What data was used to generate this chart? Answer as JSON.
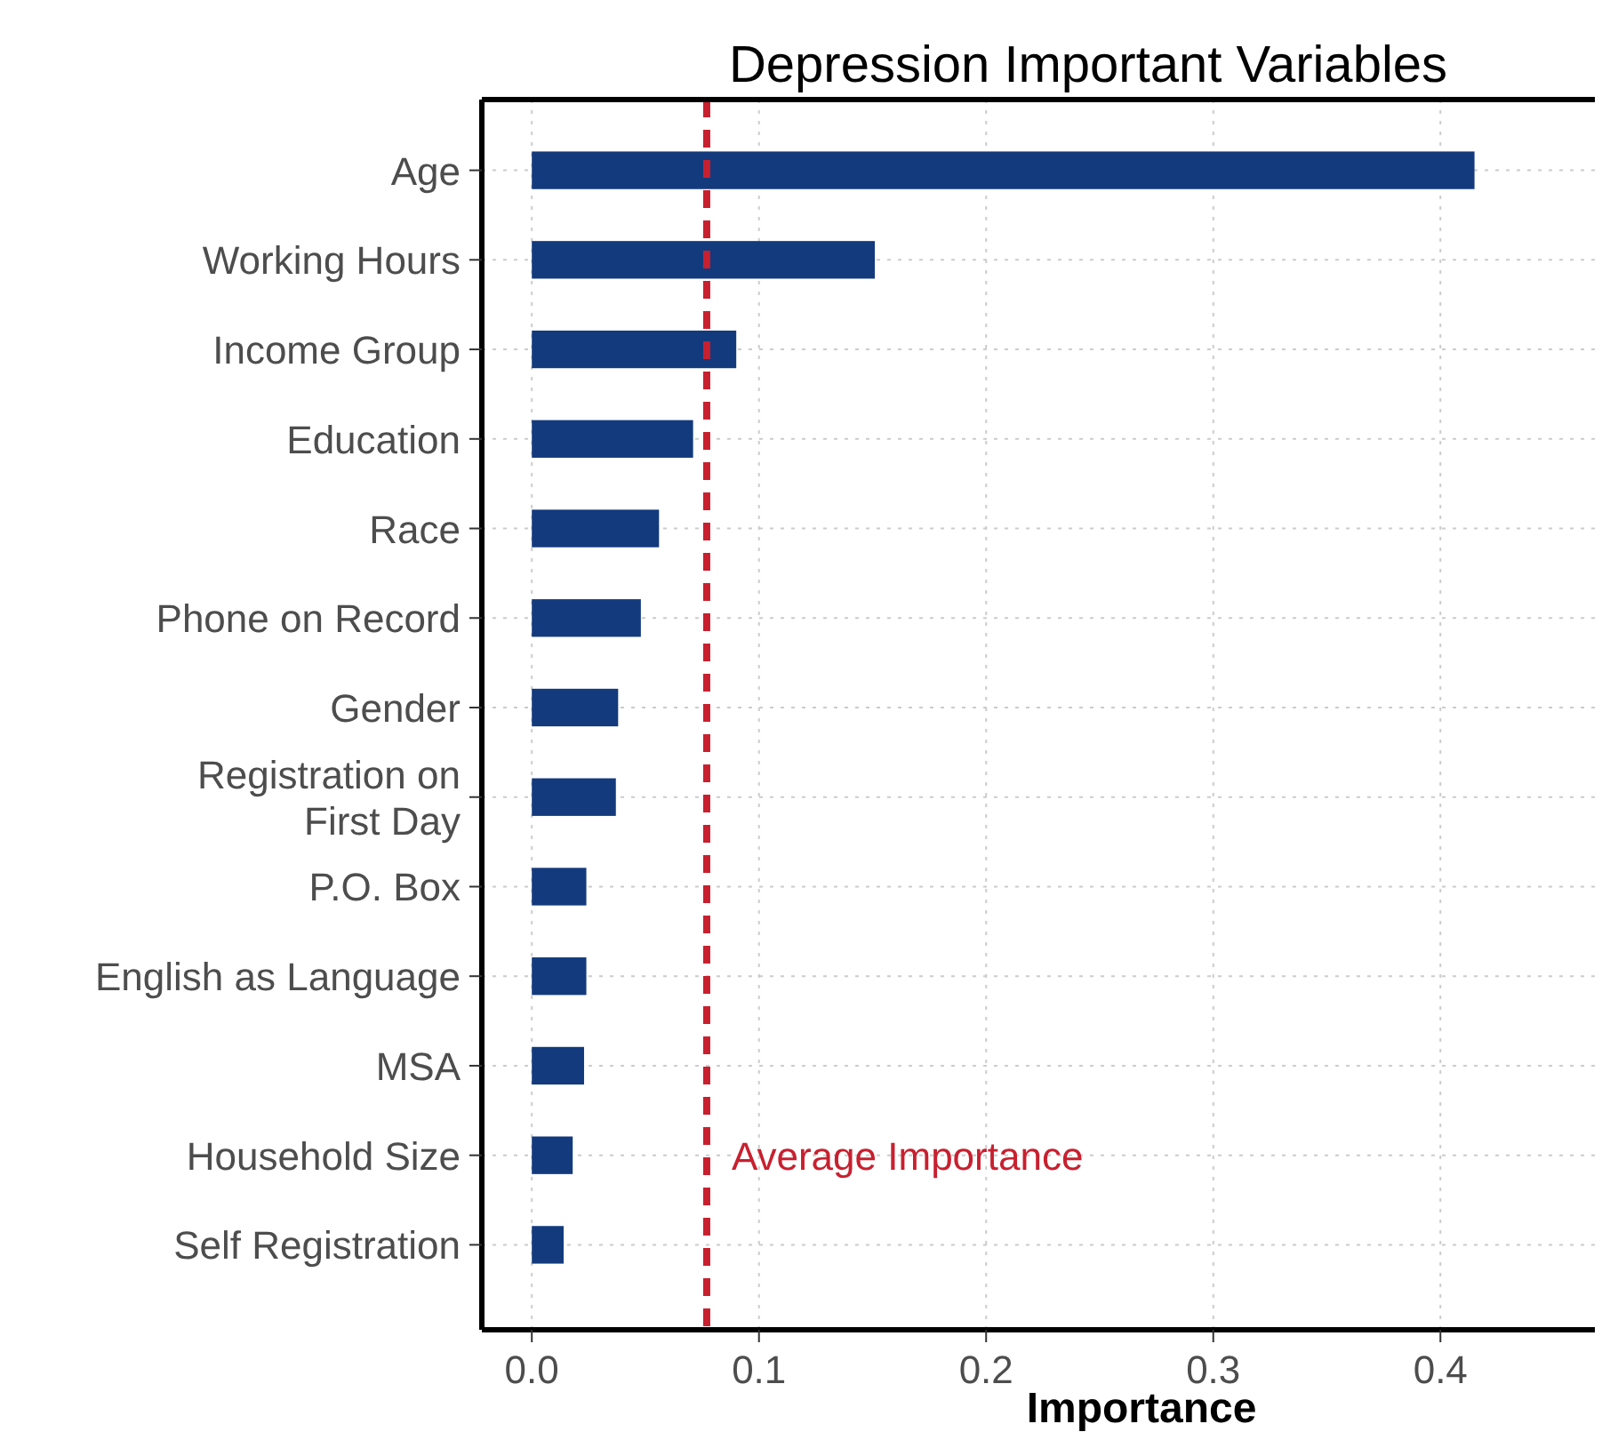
{
  "chart_data": {
    "type": "bar",
    "orientation": "horizontal",
    "title": "Depression Important Variables",
    "xlabel": "Importance",
    "categories": [
      "Age",
      "Working Hours",
      "Income Group",
      "Education",
      "Race",
      "Phone on Record",
      "Gender",
      "Registration on\nFirst Day",
      "P.O. Box",
      "English as Language",
      "MSA",
      "Household Size",
      "Self Registration"
    ],
    "values": [
      0.415,
      0.151,
      0.09,
      0.071,
      0.056,
      0.048,
      0.038,
      0.037,
      0.024,
      0.024,
      0.023,
      0.018,
      0.014
    ],
    "color": "#133a7c",
    "xlim": [
      -0.022,
      0.468
    ],
    "xticks": [
      {
        "value": 0,
        "label": "0.0"
      },
      0.1,
      0.2,
      0.3,
      0.4
    ],
    "grid": true,
    "ref_lines": [
      {
        "axis": "x",
        "value": 0.077,
        "label": "Average Importance",
        "color": "#c8202f",
        "line_style": "dashed"
      }
    ]
  }
}
